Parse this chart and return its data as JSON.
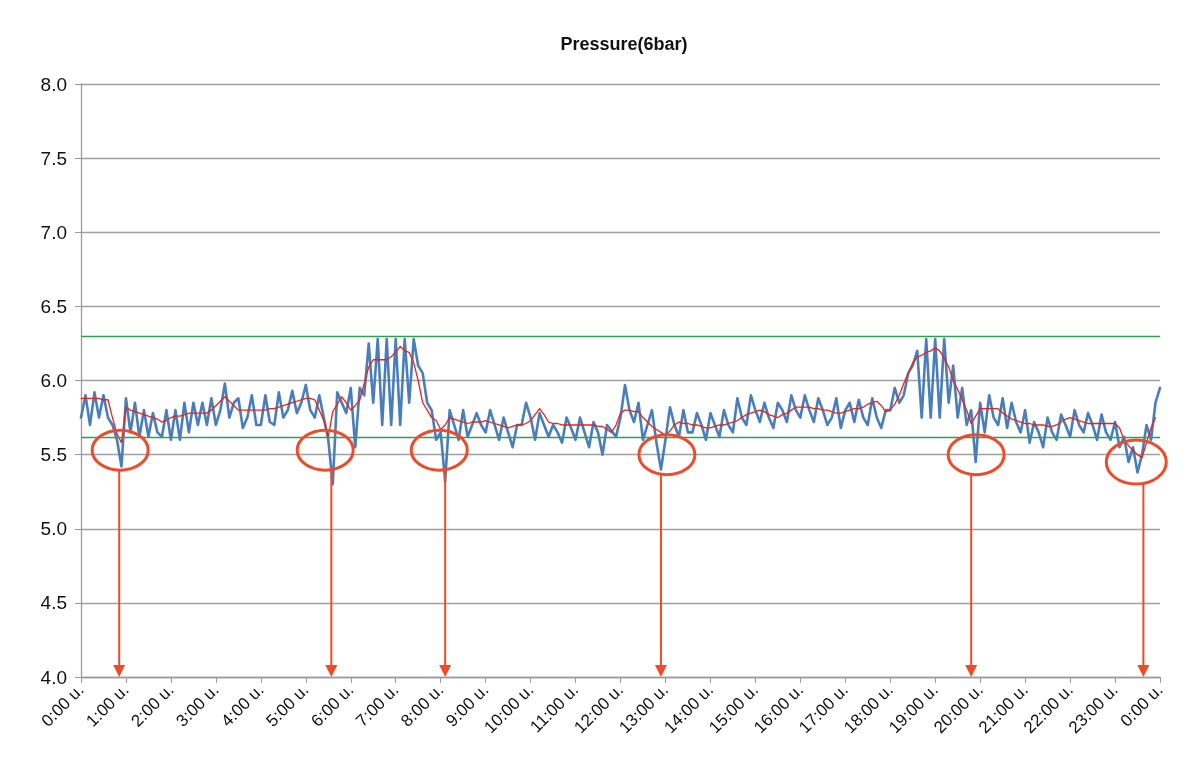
{
  "chart_data": {
    "type": "line",
    "title": "Pressure(6bar)",
    "categories": [
      "0:00 u.",
      null,
      null,
      null,
      null,
      null,
      null,
      null,
      null,
      null,
      "1:00 u.",
      null,
      null,
      null,
      null,
      null,
      null,
      null,
      null,
      null,
      "2:00 u.",
      null,
      null,
      null,
      null,
      null,
      null,
      null,
      null,
      null,
      "3:00 u.",
      null,
      null,
      null,
      null,
      null,
      null,
      null,
      null,
      null,
      "4:00 u.",
      null,
      null,
      null,
      null,
      null,
      null,
      null,
      null,
      null,
      "5:00 u.",
      null,
      null,
      null,
      null,
      null,
      null,
      null,
      null,
      null,
      "6:00 u.",
      null,
      null,
      null,
      null,
      null,
      null,
      null,
      null,
      null,
      "7:00 u.",
      null,
      null,
      null,
      null,
      null,
      null,
      null,
      null,
      null,
      "8:00 u.",
      null,
      null,
      null,
      null,
      null,
      null,
      null,
      null,
      null,
      "9:00 u.",
      null,
      null,
      null,
      null,
      null,
      null,
      null,
      null,
      null,
      "10:00 u.",
      null,
      null,
      null,
      null,
      null,
      null,
      null,
      null,
      null,
      "11:00 u.",
      null,
      null,
      null,
      null,
      null,
      null,
      null,
      null,
      null,
      "12:00 u.",
      null,
      null,
      null,
      null,
      null,
      null,
      null,
      null,
      null,
      "13:00 u.",
      null,
      null,
      null,
      null,
      null,
      null,
      null,
      null,
      null,
      "14:00 u.",
      null,
      null,
      null,
      null,
      null,
      null,
      null,
      null,
      null,
      "15:00 u.",
      null,
      null,
      null,
      null,
      null,
      null,
      null,
      null,
      null,
      "16:00 u.",
      null,
      null,
      null,
      null,
      null,
      null,
      null,
      null,
      null,
      "17:00 u.",
      null,
      null,
      null,
      null,
      null,
      null,
      null,
      null,
      null,
      "18:00 u.",
      null,
      null,
      null,
      null,
      null,
      null,
      null,
      null,
      null,
      "19:00 u.",
      null,
      null,
      null,
      null,
      null,
      null,
      null,
      null,
      null,
      "20:00 u.",
      null,
      null,
      null,
      null,
      null,
      null,
      null,
      null,
      null,
      "21:00 u.",
      null,
      null,
      null,
      null,
      null,
      null,
      null,
      null,
      null,
      "22:00 u.",
      null,
      null,
      null,
      null,
      null,
      null,
      null,
      null,
      null,
      "23:00 u.",
      null,
      null,
      null,
      null,
      null,
      null,
      null,
      null,
      null,
      "0:00 u."
    ],
    "ylim": [
      4,
      8
    ],
    "yticks": [
      {
        "value": 4,
        "label": "4.0"
      },
      {
        "value": 4.5,
        "label": "4.5"
      },
      {
        "value": 5,
        "label": "5.0"
      },
      {
        "value": 5.5,
        "label": "5.5"
      },
      {
        "value": 6,
        "label": "6.0"
      },
      {
        "value": 6.5,
        "label": "6.5"
      },
      {
        "value": 7,
        "label": "7.0"
      },
      {
        "value": 7.5,
        "label": "7.5"
      },
      {
        "value": 8,
        "label": "8.0"
      }
    ],
    "grid": "y",
    "marker": "none",
    "line_style": "solid",
    "ref_lines": [
      {
        "axis": "y",
        "value": 6.3,
        "color": "#2ca24f"
      },
      {
        "axis": "y",
        "value": 5.62,
        "color": "#2ca24f"
      }
    ],
    "series": [
      {
        "color": "#4a7ebb",
        "values": [
          5.75,
          5.9,
          5.7,
          5.92,
          5.75,
          5.9,
          5.75,
          5.7,
          5.6,
          5.42,
          5.88,
          5.65,
          5.85,
          5.62,
          5.8,
          5.62,
          5.78,
          5.65,
          5.62,
          5.8,
          5.6,
          5.8,
          5.6,
          5.85,
          5.65,
          5.85,
          5.7,
          5.85,
          5.7,
          5.88,
          5.7,
          5.8,
          5.98,
          5.75,
          5.85,
          5.88,
          5.68,
          5.75,
          5.9,
          5.7,
          5.7,
          5.9,
          5.72,
          5.7,
          5.92,
          5.75,
          5.8,
          5.93,
          5.78,
          5.85,
          5.97,
          5.8,
          5.75,
          5.9,
          5.75,
          5.6,
          5.3,
          5.92,
          5.85,
          5.78,
          5.95,
          5.55,
          5.95,
          5.9,
          6.25,
          5.85,
          6.28,
          5.7,
          6.28,
          5.7,
          6.28,
          5.7,
          6.28,
          5.85,
          6.28,
          6.1,
          6.05,
          5.85,
          5.8,
          5.6,
          5.65,
          5.32,
          5.8,
          5.7,
          5.6,
          5.8,
          5.62,
          5.7,
          5.78,
          5.7,
          5.65,
          5.8,
          5.7,
          5.6,
          5.75,
          5.65,
          5.55,
          5.7,
          5.7,
          5.85,
          5.75,
          5.6,
          5.78,
          5.7,
          5.62,
          5.7,
          5.65,
          5.58,
          5.75,
          5.68,
          5.6,
          5.75,
          5.65,
          5.55,
          5.72,
          5.65,
          5.5,
          5.7,
          5.66,
          5.62,
          5.75,
          5.97,
          5.8,
          5.72,
          5.85,
          5.6,
          5.7,
          5.8,
          5.58,
          5.4,
          5.6,
          5.82,
          5.7,
          5.62,
          5.8,
          5.65,
          5.65,
          5.78,
          5.7,
          5.6,
          5.78,
          5.7,
          5.62,
          5.8,
          5.7,
          5.65,
          5.88,
          5.75,
          5.7,
          5.9,
          5.8,
          5.72,
          5.85,
          5.75,
          5.68,
          5.85,
          5.8,
          5.72,
          5.9,
          5.8,
          5.75,
          5.9,
          5.8,
          5.72,
          5.88,
          5.8,
          5.7,
          5.75,
          5.88,
          5.68,
          5.8,
          5.85,
          5.72,
          5.87,
          5.75,
          5.7,
          5.88,
          5.75,
          5.68,
          5.8,
          5.8,
          5.95,
          5.85,
          5.9,
          6.05,
          6.1,
          6.2,
          5.75,
          6.28,
          5.75,
          6.28,
          5.75,
          6.28,
          5.85,
          6.1,
          5.75,
          5.95,
          5.7,
          5.8,
          5.45,
          5.85,
          5.65,
          5.9,
          5.75,
          5.7,
          5.88,
          5.68,
          5.85,
          5.72,
          5.65,
          5.8,
          5.58,
          5.72,
          5.65,
          5.55,
          5.75,
          5.65,
          5.6,
          5.77,
          5.7,
          5.62,
          5.8,
          5.7,
          5.65,
          5.78,
          5.7,
          5.6,
          5.77,
          5.65,
          5.6,
          5.72,
          5.55,
          5.62,
          5.45,
          5.55,
          5.38,
          5.5,
          5.7,
          5.6,
          5.85,
          5.95
        ]
      },
      {
        "color": "#e8231b",
        "values": [
          5.88,
          5.88,
          5.88,
          5.88,
          5.88,
          5.87,
          5.87,
          5.75,
          5.64,
          5.58,
          5.82,
          5.8,
          5.79,
          5.78,
          5.77,
          5.76,
          5.75,
          5.74,
          5.72,
          5.73,
          5.75,
          5.76,
          5.76,
          5.77,
          5.78,
          5.78,
          5.78,
          5.78,
          5.78,
          5.8,
          5.83,
          5.86,
          5.89,
          5.86,
          5.83,
          5.8,
          5.8,
          5.8,
          5.8,
          5.8,
          5.8,
          5.8,
          5.81,
          5.81,
          5.82,
          5.83,
          5.84,
          5.85,
          5.86,
          5.87,
          5.88,
          5.88,
          5.87,
          5.8,
          5.73,
          5.62,
          5.79,
          5.84,
          5.89,
          5.85,
          5.8,
          5.83,
          5.87,
          5.98,
          6.09,
          6.14,
          6.14,
          6.14,
          6.14,
          6.16,
          6.19,
          6.23,
          6.2,
          6.19,
          6.12,
          6.0,
          5.85,
          5.8,
          5.75,
          5.73,
          5.67,
          5.7,
          5.75,
          5.74,
          5.73,
          5.72,
          5.71,
          5.72,
          5.72,
          5.72,
          5.73,
          5.72,
          5.71,
          5.7,
          5.69,
          5.68,
          5.69,
          5.7,
          5.7,
          5.71,
          5.73,
          5.77,
          5.81,
          5.77,
          5.72,
          5.71,
          5.71,
          5.7,
          5.7,
          5.7,
          5.7,
          5.7,
          5.7,
          5.7,
          5.7,
          5.69,
          5.69,
          5.67,
          5.65,
          5.7,
          5.78,
          5.8,
          5.8,
          5.79,
          5.79,
          5.75,
          5.72,
          5.69,
          5.67,
          5.65,
          5.63,
          5.66,
          5.7,
          5.72,
          5.71,
          5.71,
          5.7,
          5.7,
          5.69,
          5.68,
          5.68,
          5.69,
          5.7,
          5.7,
          5.71,
          5.72,
          5.73,
          5.75,
          5.77,
          5.78,
          5.79,
          5.8,
          5.79,
          5.77,
          5.76,
          5.75,
          5.77,
          5.78,
          5.8,
          5.82,
          5.82,
          5.82,
          5.82,
          5.81,
          5.81,
          5.8,
          5.8,
          5.79,
          5.78,
          5.78,
          5.79,
          5.8,
          5.81,
          5.81,
          5.82,
          5.84,
          5.85,
          5.86,
          5.83,
          5.79,
          5.8,
          5.84,
          5.9,
          5.98,
          6.05,
          6.12,
          6.16,
          6.17,
          6.19,
          6.2,
          6.22,
          6.2,
          6.15,
          6.09,
          6.0,
          5.94,
          5.87,
          5.8,
          5.71,
          5.76,
          5.81,
          5.81,
          5.81,
          5.81,
          5.81,
          5.78,
          5.76,
          5.74,
          5.73,
          5.72,
          5.71,
          5.71,
          5.7,
          5.7,
          5.7,
          5.69,
          5.69,
          5.7,
          5.72,
          5.74,
          5.75,
          5.74,
          5.73,
          5.72,
          5.71,
          5.71,
          5.71,
          5.71,
          5.71,
          5.71,
          5.71,
          5.68,
          5.6,
          5.56,
          5.53,
          5.5,
          5.48,
          5.58,
          5.68,
          5.75,
          null
        ]
      }
    ]
  }
}
